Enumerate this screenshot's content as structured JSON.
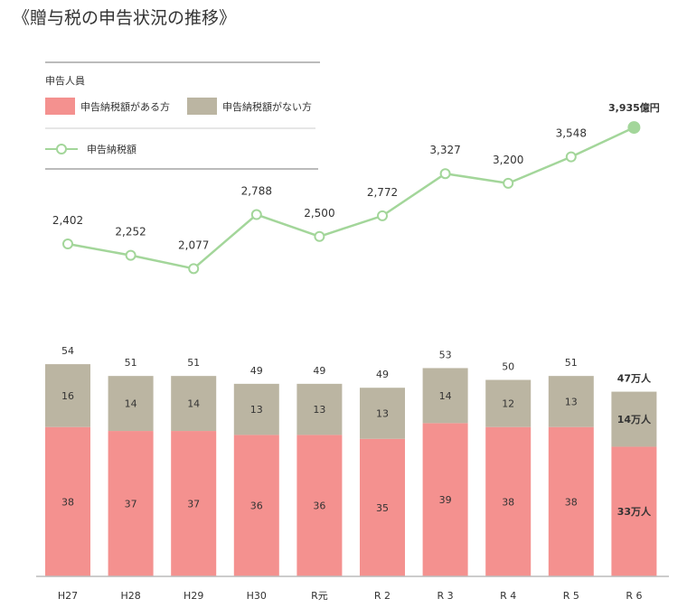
{
  "chart_data": {
    "type": "bar+line",
    "title": "《贈与税の申告状況の推移》",
    "legend": {
      "group_title": "申告人員",
      "placement": "top-left"
    },
    "categories": [
      "H27",
      "H28",
      "H29",
      "H30",
      "R元",
      "R 2",
      "R 3",
      "R 4",
      "R 5",
      "R 6"
    ],
    "bar_series": [
      {
        "name": "申告納税額がある方",
        "color": "#f4918f",
        "values": [
          38,
          37,
          37,
          36,
          36,
          35,
          39,
          38,
          38,
          33
        ]
      },
      {
        "name": "申告納税額がない方",
        "color": "#bbb5a2",
        "values": [
          16,
          14,
          14,
          13,
          13,
          13,
          14,
          12,
          13,
          14
        ]
      }
    ],
    "bar_totals": [
      54,
      51,
      51,
      49,
      49,
      49,
      53,
      50,
      51,
      47
    ],
    "line_series": {
      "name": "申告納税額",
      "color": "#a3d69a",
      "values": [
        2402,
        2252,
        2077,
        2788,
        2500,
        2772,
        3327,
        3200,
        3548,
        3935
      ]
    },
    "last_labels": {
      "total": "47万人",
      "without_tax": "14万人",
      "with_tax": "33万人",
      "amount": "3,935億円"
    },
    "bar_unit": "万人",
    "line_unit": "億円"
  }
}
